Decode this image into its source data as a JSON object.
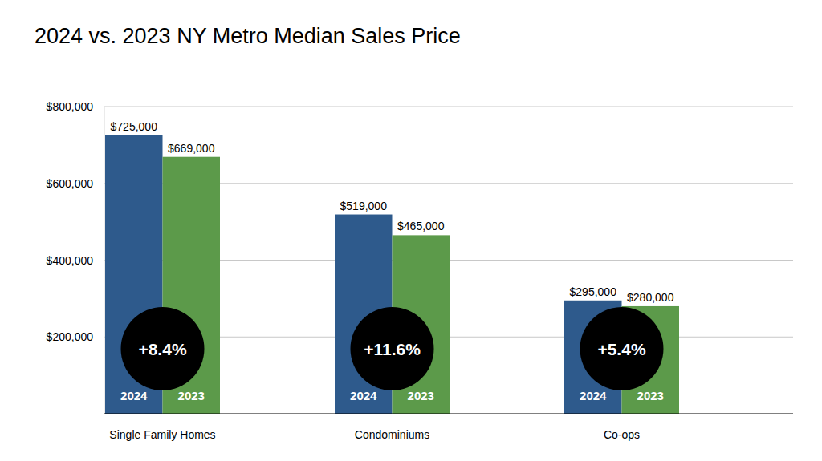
{
  "chart_data": {
    "type": "bar",
    "title": "2024 vs. 2023 NY Metro Median Sales Price",
    "categories": [
      "Single Family Homes",
      "Condominiums",
      "Co-ops"
    ],
    "series": [
      {
        "name": "2024",
        "color": "#2e5a8c",
        "values": [
          725000,
          519000,
          295000
        ],
        "value_labels": [
          "$725,000",
          "$519,000",
          "$295,000"
        ]
      },
      {
        "name": "2023",
        "color": "#5c9a4a",
        "values": [
          669000,
          465000,
          280000
        ],
        "value_labels": [
          "$669,000",
          "$465,000",
          "$280,000"
        ]
      }
    ],
    "annotations": [
      "+8.4%",
      "+11.6%",
      "+5.4%"
    ],
    "ylim": [
      0,
      800000
    ],
    "yticks": [
      {
        "value": 200000,
        "label": "$200,000"
      },
      {
        "value": 400000,
        "label": "$400,000"
      },
      {
        "value": 600000,
        "label": "$600,000"
      },
      {
        "value": 800000,
        "label": "$800,000"
      }
    ],
    "grid": true,
    "data_labels": true
  }
}
